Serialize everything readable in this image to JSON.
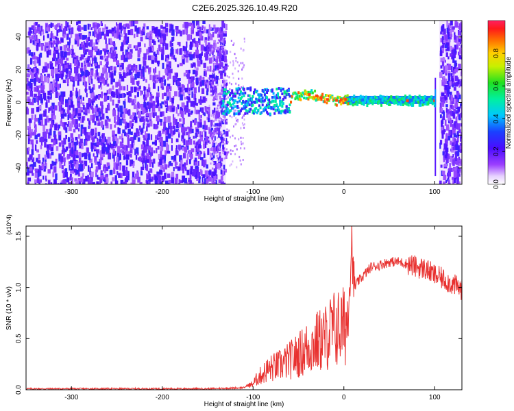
{
  "title": "C2E6.2025.326.10.49.R20",
  "chart_data": [
    {
      "type": "heatmap",
      "xlabel": "Height of straight line (km)",
      "ylabel": "Frequency (Hz)",
      "xlim": [
        -350,
        130
      ],
      "ylim": [
        -50,
        50
      ],
      "xticks": [
        -300,
        -200,
        -100,
        0,
        100
      ],
      "yticks": [
        -40,
        -20,
        0,
        20,
        40
      ],
      "colorbar": {
        "label": "Normalized spectral amplitude",
        "range": [
          0,
          1
        ],
        "ticks": [
          "0.0",
          "0.2",
          "0.4",
          "0.6",
          "0.8"
        ],
        "colormap": "rainbow (white→violet→blue→cyan→green→yellow→orange→red)"
      },
      "features": {
        "noise_region_km": [
          -350,
          -130
        ],
        "signal_band_frequency_hz": [
          0,
          3
        ],
        "strong_segment_km": [
          -60,
          100
        ],
        "edge_spike_km": 100,
        "noise_region_right_km": [
          105,
          130
        ]
      },
      "ridge": {
        "x": [
          -130,
          -110,
          -100,
          -90,
          -80,
          -70,
          -60,
          -50,
          -40,
          -30,
          -20,
          -10,
          0,
          10,
          30,
          50,
          70,
          90,
          100
        ],
        "y": [
          0,
          1,
          1,
          0,
          0.5,
          1,
          2,
          4,
          5,
          4,
          2,
          1,
          2,
          1,
          1,
          1,
          1,
          1,
          1
        ]
      }
    },
    {
      "type": "line",
      "xlabel": "Height of straight line (km)",
      "ylabel": "SNR (10 * v/v)",
      "y_multiplier": "(x10^4)",
      "xlim": [
        -350,
        130
      ],
      "ylim": [
        0,
        1.6
      ],
      "xticks": [
        -300,
        -200,
        -100,
        0,
        100
      ],
      "yticks": [
        "0.0",
        "0.5",
        "1.0",
        "1.5"
      ],
      "color": "#e8312f",
      "series": [
        {
          "x": [
            -350,
            -300,
            -250,
            -200,
            -150,
            -110,
            -100,
            -95,
            -90,
            -85,
            -80,
            -75,
            -70,
            -65,
            -60,
            -55,
            -50,
            -45,
            -40,
            -35,
            -30,
            -25,
            -20,
            -15,
            -10,
            -5,
            0,
            3,
            6,
            8,
            9,
            10,
            12,
            15,
            20,
            25,
            30,
            40,
            50,
            60,
            70,
            80,
            90,
            100,
            110,
            120,
            130
          ],
          "y": [
            0.01,
            0.01,
            0.01,
            0.01,
            0.01,
            0.02,
            0.08,
            0.15,
            0.2,
            0.25,
            0.28,
            0.3,
            0.32,
            0.35,
            0.38,
            0.42,
            0.45,
            0.5,
            0.55,
            0.58,
            0.62,
            0.65,
            0.68,
            0.75,
            0.8,
            0.8,
            0.82,
            0.9,
            1.0,
            1.35,
            1.55,
            1.1,
            1.0,
            1.05,
            1.1,
            1.15,
            1.2,
            1.22,
            1.25,
            1.25,
            1.23,
            1.2,
            1.18,
            1.12,
            1.08,
            1.03,
            0.98
          ]
        }
      ]
    }
  ]
}
